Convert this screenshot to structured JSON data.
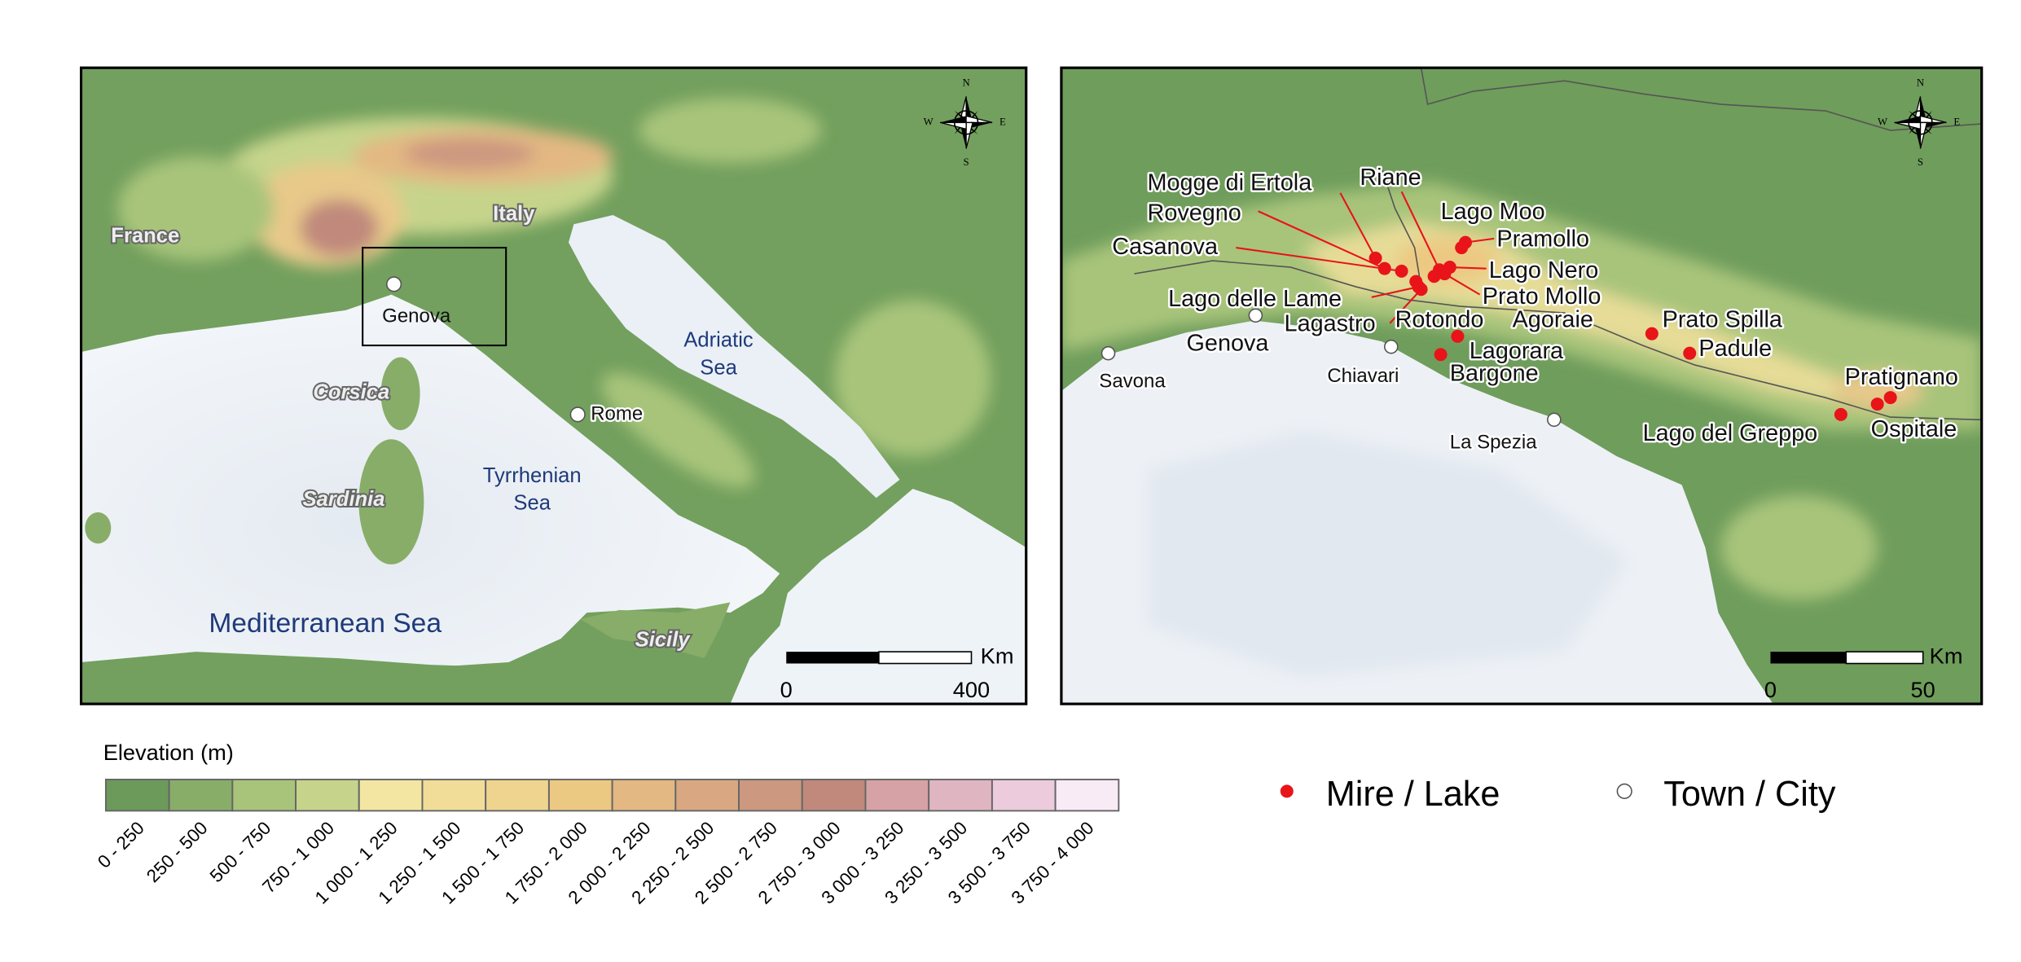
{
  "overview_map": {
    "regions": [
      "France",
      "Italy",
      "Corsica",
      "Sardinia",
      "Sicily"
    ],
    "seas": [
      {
        "lines": [
          "Adriatic",
          "Sea"
        ]
      },
      {
        "lines": [
          "Tyrrhenian",
          "Sea"
        ]
      },
      {
        "lines": [
          "Mediterranean Sea"
        ]
      }
    ],
    "cities": [
      "Genova",
      "Rome"
    ],
    "scale_bar": {
      "unit": "Km",
      "ticks": [
        0,
        400
      ]
    },
    "compass": [
      "N",
      "E",
      "S",
      "W"
    ]
  },
  "detail_map": {
    "sites": [
      "Mogge di Ertola",
      "Rovegno",
      "Casanova",
      "Lago delle Lame",
      "Lagastro",
      "Rotondo",
      "Riane",
      "Lago Moo",
      "Pramollo",
      "Lago Nero",
      "Prato Mollo",
      "Agoraie",
      "Lagorara",
      "Bargone",
      "Prato Spilla",
      "Padule",
      "Pratignano",
      "Ospitale",
      "Lago del Greppo"
    ],
    "towns": [
      "Savona",
      "Genova",
      "Chiavari",
      "La Spezia"
    ],
    "scale_bar": {
      "unit": "Km",
      "ticks": [
        0,
        50
      ]
    },
    "compass": [
      "N",
      "E",
      "S",
      "W"
    ]
  },
  "elevation_legend": {
    "title": "Elevation (m)",
    "classes": [
      {
        "label": "0 - 250",
        "color": "#6b9a5b"
      },
      {
        "label": "250 - 500",
        "color": "#88ad69"
      },
      {
        "label": "500 - 750",
        "color": "#a8c47a"
      },
      {
        "label": "750 - 1 000",
        "color": "#c6d48b"
      },
      {
        "label": "1 000 - 1 250",
        "color": "#f3e6a2"
      },
      {
        "label": "1 250 - 1 500",
        "color": "#f1dd98"
      },
      {
        "label": "1 500 - 1 750",
        "color": "#efd490"
      },
      {
        "label": "1 750 - 2 000",
        "color": "#ecc982"
      },
      {
        "label": "2 000 - 2 250",
        "color": "#e3b882"
      },
      {
        "label": "2 250 - 2 500",
        "color": "#d9a882"
      },
      {
        "label": "2 500 - 2 750",
        "color": "#cc9880"
      },
      {
        "label": "2 750 - 3 000",
        "color": "#c0897c"
      },
      {
        "label": "3 000 - 3 250",
        "color": "#d6a2a6"
      },
      {
        "label": "3 250 - 3 500",
        "color": "#e0b5c2"
      },
      {
        "label": "3 500 - 3 750",
        "color": "#ecccdc"
      },
      {
        "label": "3 750 - 4 000",
        "color": "#f8ebf6"
      }
    ]
  },
  "symbol_legend": [
    {
      "label": "Mire / Lake",
      "color": "#e8141a"
    },
    {
      "label": "Town / City",
      "color": "#ffffff"
    }
  ]
}
